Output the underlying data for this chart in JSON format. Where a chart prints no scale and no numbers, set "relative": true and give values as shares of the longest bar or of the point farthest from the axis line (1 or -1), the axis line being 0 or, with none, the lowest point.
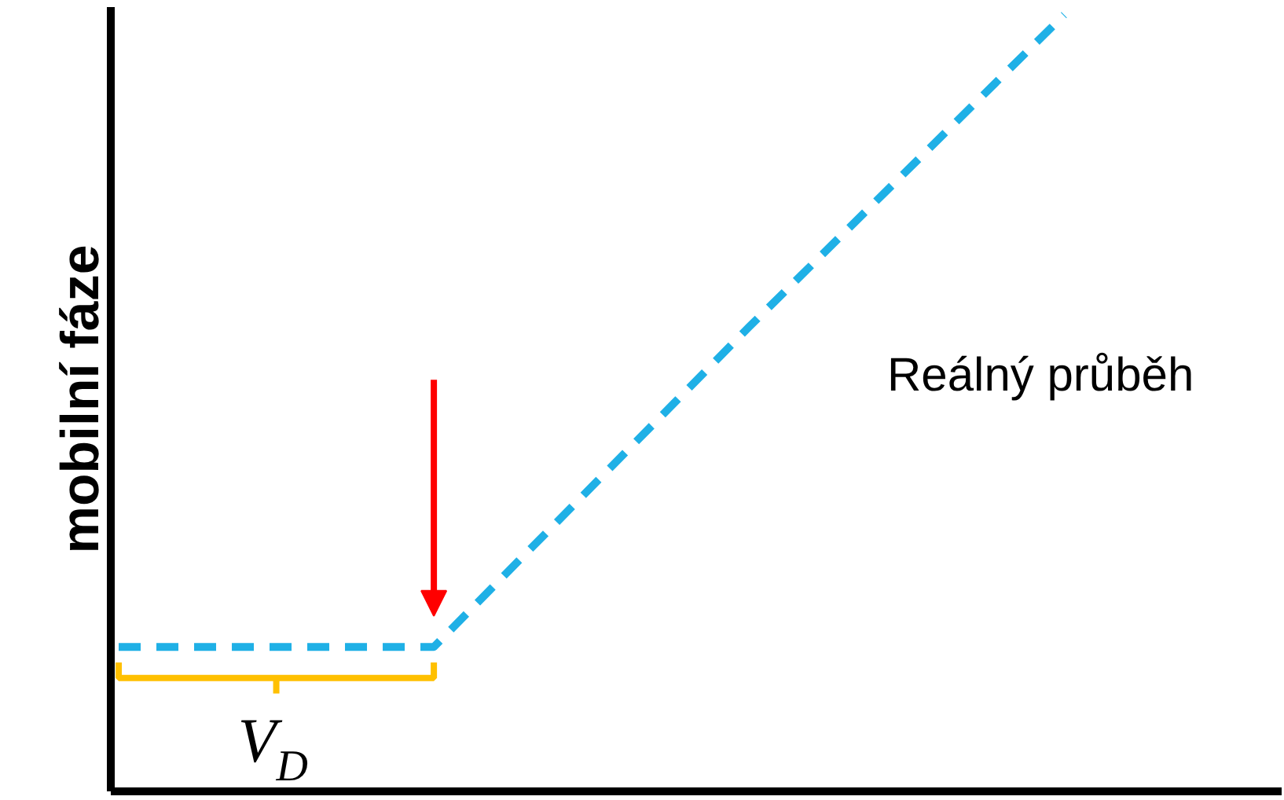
{
  "chart_data": {
    "type": "line",
    "relative": true,
    "ylabel": "mobilní fáze",
    "categories": [
      null,
      null,
      null,
      null
    ],
    "series": [
      {
        "color": "#1fb0e6",
        "values": [
          0.186,
          0.186,
          0.598,
          1.0
        ]
      }
    ],
    "line_style": "dashed",
    "marker": "none",
    "grid": false,
    "annotations": [
      "Reálný průběh",
      "V$_{D}$"
    ]
  }
}
